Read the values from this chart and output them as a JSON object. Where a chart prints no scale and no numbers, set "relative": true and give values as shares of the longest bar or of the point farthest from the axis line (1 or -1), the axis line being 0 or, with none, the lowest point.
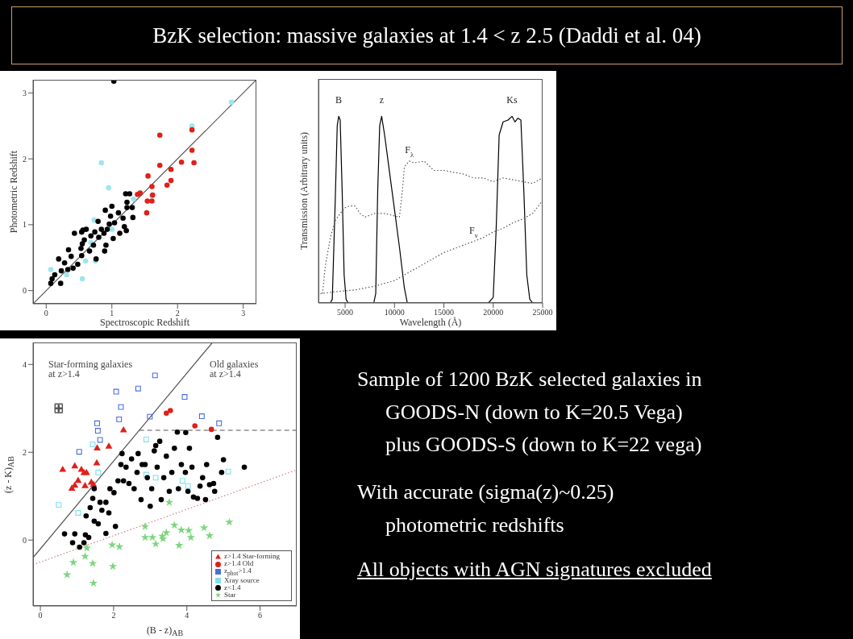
{
  "chart_data": [
    {
      "type": "scatter",
      "xlabel": "Spectroscopic Redshift",
      "ylabel": "Photometric Redshift",
      "xlim": [
        -0.2,
        3.2
      ],
      "ylim": [
        -0.2,
        3.2
      ],
      "xticks": [
        0,
        1,
        2,
        3
      ],
      "yticks": [
        0,
        1,
        2,
        3
      ],
      "grid": false,
      "legend": false,
      "marker": "circle",
      "series": [
        {
          "type": "line",
          "color": "#555555",
          "marker": "none",
          "line_style": "solid",
          "x": [
            -0.2,
            3.2
          ],
          "values": [
            -0.2,
            3.2
          ]
        },
        {
          "color": "#9ee6ee",
          "x": [
            0.84,
            0.95,
            0.73,
            2.22,
            2.82,
            1.61,
            1.33,
            0.75,
            0.6,
            0.55,
            0.07,
            0.31,
            1.0,
            0.68
          ],
          "values": [
            1.94,
            1.56,
            1.07,
            2.5,
            2.86,
            1.44,
            1.39,
            0.45,
            0.45,
            0.18,
            0.32,
            0.24,
            0.93,
            0.73
          ]
        },
        {
          "color": "#000000",
          "x": [
            1.03,
            0.07,
            0.09,
            0.13,
            0.22,
            0.23,
            0.28,
            0.33,
            0.34,
            0.38,
            0.41,
            0.43,
            0.48,
            0.53,
            0.54,
            0.55,
            0.56,
            0.58,
            0.61,
            0.66,
            0.68,
            0.72,
            0.74,
            0.76,
            0.8,
            0.84,
            0.88,
            0.89,
            0.93,
            0.96,
            0.98,
            1.0,
            1.02,
            1.04,
            1.1,
            1.12,
            1.17,
            1.19,
            1.22,
            1.23,
            1.27,
            1.21,
            1.31,
            1.32,
            1.23,
            0.91,
            0.79,
            0.9,
            0.54,
            0.19
          ],
          "values": [
            3.18,
            0.11,
            0.18,
            0.24,
            0.11,
            0.3,
            0.42,
            0.32,
            0.62,
            0.52,
            0.34,
            0.87,
            0.4,
            0.64,
            0.53,
            0.71,
            0.92,
            0.77,
            0.93,
            0.6,
            0.83,
            0.69,
            0.89,
            0.48,
            0.81,
            0.93,
            0.87,
            0.6,
            0.93,
            1.01,
            1.13,
            1.28,
            0.79,
            1.03,
            1.18,
            0.87,
            1.1,
            0.97,
            0.91,
            1.34,
            1.47,
            1.47,
            1.26,
            1.11,
            1.26,
            0.69,
            1.05,
            1.22,
            0.89,
            0.48
          ]
        },
        {
          "color": "#e0201a",
          "x": [
            1.73,
            2.22,
            2.22,
            2.25,
            2.06,
            1.73,
            1.9,
            1.9,
            1.84,
            1.55,
            1.61,
            1.43,
            1.54,
            1.61,
            1.62,
            1.53,
            1.39
          ],
          "values": [
            2.36,
            2.44,
            2.13,
            1.94,
            1.95,
            1.9,
            1.84,
            1.67,
            1.6,
            1.74,
            1.58,
            1.48,
            1.36,
            1.36,
            1.45,
            1.18,
            1.46
          ]
        }
      ]
    },
    {
      "type": "line",
      "relative": true,
      "tick_labels": "x",
      "xlabel": "Wavelength (Å)",
      "ylabel": "Transmission (Arbitrary units)",
      "xlim": [
        2300,
        25000
      ],
      "xticks": [
        5000,
        10000,
        15000,
        20000,
        25000
      ],
      "grid": false,
      "legend": false,
      "marker": "none",
      "series": [
        {
          "name": "B",
          "color": "#000000",
          "line_style": "solid",
          "x": [
            3500,
            3700,
            4000,
            4200,
            4350,
            4500,
            4700,
            4900,
            5100,
            5300
          ],
          "values": [
            0,
            0.02,
            0.55,
            0.95,
            1.0,
            0.98,
            0.6,
            0.15,
            0.02,
            0
          ]
        },
        {
          "name": "z",
          "color": "#000000",
          "line_style": "solid",
          "x": [
            7900,
            8100,
            8300,
            8500,
            8700,
            9000,
            9500,
            10000,
            10500,
            11000,
            11300
          ],
          "values": [
            0,
            0.05,
            0.6,
            0.95,
            1.0,
            0.9,
            0.7,
            0.5,
            0.3,
            0.08,
            0
          ]
        },
        {
          "name": "Ks",
          "color": "#000000",
          "line_style": "solid",
          "x": [
            19500,
            20000,
            20300,
            20600,
            21000,
            21500,
            21900,
            22200,
            22500,
            22800,
            23100,
            23400,
            23700,
            24000
          ],
          "values": [
            0,
            0.03,
            0.4,
            0.9,
            0.97,
            0.98,
            1.0,
            0.97,
            0.99,
            0.98,
            0.6,
            0.15,
            0.02,
            0
          ]
        },
        {
          "name": "F$_{λ}$",
          "color": "#555555",
          "line_style": "dotted",
          "x": [
            2700,
            3000,
            3500,
            4000,
            4500,
            5000,
            5500,
            6000,
            6500,
            7000,
            8000,
            9000,
            10500,
            10800,
            11000,
            11500,
            12000,
            13000,
            14000,
            15000,
            16000,
            17000,
            18000,
            19000,
            20000,
            21000,
            22000,
            23000,
            24000,
            25000
          ],
          "values": [
            0.05,
            0.2,
            0.35,
            0.44,
            0.48,
            0.51,
            0.52,
            0.52,
            0.48,
            0.46,
            0.48,
            0.48,
            0.46,
            0.6,
            0.73,
            0.76,
            0.75,
            0.76,
            0.71,
            0.71,
            0.7,
            0.69,
            0.67,
            0.67,
            0.65,
            0.67,
            0.66,
            0.65,
            0.64,
            0.67
          ]
        },
        {
          "name": "F$_{ν}$",
          "color": "#555555",
          "line_style": "dotted",
          "x": [
            2500,
            4000,
            6000,
            8000,
            10000,
            11000,
            12000,
            13000,
            14000,
            15000,
            16000,
            17000,
            18000,
            19000,
            20000,
            21000,
            22000,
            23000,
            24000,
            25000
          ],
          "values": [
            0.05,
            0.06,
            0.07,
            0.09,
            0.12,
            0.15,
            0.18,
            0.21,
            0.24,
            0.27,
            0.29,
            0.31,
            0.33,
            0.35,
            0.38,
            0.4,
            0.43,
            0.45,
            0.48,
            0.55
          ]
        }
      ]
    },
    {
      "type": "scatter",
      "xlabel": "(B - z)$_{AB}$",
      "ylabel": "(z - K)$_{AB}$",
      "xlim": [
        -0.2,
        7
      ],
      "ylim": [
        -1.5,
        4.5
      ],
      "xticks": [
        0,
        2,
        4,
        6
      ],
      "yticks": [
        0,
        2,
        4
      ],
      "grid": false,
      "legend": "bottom right",
      "annotations": [
        "Star-forming galaxies\nat z>1.4",
        "Old galaxies\nat z>1.4"
      ],
      "series": [
        {
          "type": "line",
          "color": "#555555",
          "marker": "none",
          "line_style": "solid",
          "x": [
            -0.2,
            4.7
          ],
          "values": [
            -0.4,
            4.5
          ]
        },
        {
          "type": "line",
          "color": "#555555",
          "marker": "none",
          "line_style": "dashed",
          "x": [
            2.7,
            7
          ],
          "values": [
            2.5,
            2.5
          ]
        },
        {
          "type": "line",
          "color": "#d08080",
          "marker": "none",
          "line_style": "dotted",
          "x": [
            -0.2,
            7
          ],
          "values": [
            -0.56,
            1.6
          ]
        },
        {
          "color": "#555555",
          "marker": "cross",
          "x": [
            0.5
          ],
          "values": [
            3.0
          ],
          "errors": [
            0.1
          ],
          "xerrors": [
            0.1
          ]
        },
        {
          "name": "z>1.4 Star-forming",
          "color": "#e0201a",
          "marker": "triangle",
          "x": [
            2.27,
            1.87,
            1.55,
            1.54,
            0.61,
            0.94,
            1.12,
            1.19,
            1.26,
            1.03,
            1.39,
            1.45,
            0.94,
            0.86,
            1.22
          ],
          "values": [
            2.5,
            2.13,
            2.09,
            1.75,
            1.6,
            1.68,
            1.6,
            1.53,
            1.53,
            1.35,
            1.31,
            1.26,
            1.24,
            1.17,
            1.23
          ]
        },
        {
          "name": "z>1.4 Old",
          "color": "#e0201a",
          "marker": "circle",
          "x": [
            3.44,
            3.55,
            4.22,
            4.67
          ],
          "values": [
            2.89,
            2.95,
            2.6,
            2.52
          ]
        },
        {
          "name": "z$_{phot}$>1.4",
          "color": "#4a6ee0",
          "marker": "square",
          "x": [
            3.13,
            2.67,
            2.07,
            2.2,
            2.15,
            2.99,
            3.94,
            4.41,
            4.88,
            1.55,
            1.57,
            1.63,
            1.06
          ],
          "values": [
            3.75,
            3.45,
            3.38,
            3.03,
            2.75,
            2.81,
            3.26,
            2.82,
            2.66,
            2.66,
            2.49,
            2.28,
            2.01
          ]
        },
        {
          "name": "Xray source",
          "color": "#7fe0ee",
          "marker": "square",
          "x": [
            0.5,
            1.03,
            1.58,
            5.13,
            4.03,
            3.88,
            1.43,
            3.15,
            2.89,
            2.89
          ],
          "values": [
            0.8,
            0.62,
            1.54,
            1.56,
            1.23,
            1.35,
            2.18,
            1.42,
            1.49,
            2.29
          ]
        },
        {
          "name": "z<1.4",
          "color": "#000000",
          "marker": "circle",
          "x": [
            0.66,
            0.94,
            1.07,
            1.19,
            1.23,
            1.32,
            1.25,
            1.36,
            1.43,
            1.47,
            1.58,
            1.68,
            1.79,
            1.87,
            1.9,
            2.01,
            2.05,
            2.12,
            2.2,
            2.23,
            2.34,
            2.42,
            2.49,
            2.56,
            2.64,
            2.67,
            2.75,
            2.78,
            2.92,
            3.0,
            3.04,
            3.11,
            3.19,
            3.26,
            3.3,
            3.37,
            3.44,
            3.52,
            3.59,
            3.66,
            3.74,
            3.77,
            3.85,
            3.96,
            3.97,
            4.03,
            4.07,
            4.14,
            4.18,
            4.29,
            4.36,
            4.43,
            4.51,
            4.54,
            4.62,
            4.73,
            4.76,
            4.84,
            4.95,
            5.0,
            5.57,
            1.79,
            0.88,
            1.47,
            1.63,
            2.27,
            2.86,
            3.15
          ],
          "values": [
            0.14,
            0.14,
            -0.16,
            -0.06,
            0.12,
            0.06,
            0.55,
            0.74,
            0.95,
            0.43,
            0.37,
            0.68,
            0.86,
            0.62,
            1.17,
            1.08,
            0.31,
            1.35,
            1.72,
            1.97,
            1.66,
            1.29,
            1.85,
            1.17,
            1.54,
            1.97,
            0.92,
            1.72,
            1.42,
            0.77,
            1.17,
            2.03,
            1.66,
            2.25,
            0.92,
            1.42,
            1.91,
            1.11,
            1.54,
            2.09,
            2.46,
            1.17,
            1.72,
            1.54,
            2.45,
            1.11,
            2.09,
            1.66,
            0.98,
            0.95,
            1.23,
            1.42,
            0.92,
            1.72,
            1.26,
            1.29,
            1.11,
            2.34,
            1.54,
            1.83,
            1.66,
            0.15,
            -0.06,
            1.17,
            0.86,
            1.35,
            1.72,
            2.15
          ]
        },
        {
          "name": "Star",
          "color": "#7ed67e",
          "marker": "star",
          "x": [
            0.73,
            0.9,
            1.22,
            1.43,
            1.45,
            1.98,
            1.96,
            2.16,
            1.27,
            2.86,
            3.06,
            3.33,
            3.35,
            3.44,
            3.66,
            3.85,
            4.05,
            4.11,
            4.47,
            4.62,
            5.16,
            3.79,
            3.52,
            2.86,
            3.15
          ],
          "values": [
            -0.79,
            -0.51,
            -0.37,
            -0.53,
            -0.98,
            -0.6,
            -0.11,
            -0.15,
            -0.18,
            0.06,
            0.06,
            0.09,
            0.03,
            0.17,
            0.34,
            0.23,
            0.22,
            0.06,
            0.28,
            0.1,
            0.41,
            -0.12,
            0.86,
            0.31,
            -0.09
          ]
        }
      ]
    },
    {
      "type": "other",
      "title": "BzK selection: massive galaxies at 1.4 < z 2.5 (Daddi et al. 04)",
      "annotations": [
        "Sample of 1200 BzK selected galaxies in",
        "GOODS-N (down to K=20.5 Vega)",
        "plus GOODS-S (down to K=22 vega)",
        "With accurate (sigma(z)~0.25)",
        "photometric redshifts",
        "All objects with AGN signatures excluded"
      ]
    }
  ]
}
